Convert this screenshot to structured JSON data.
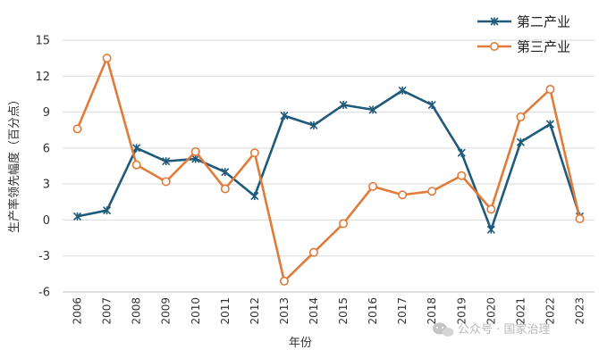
{
  "chart_data": {
    "type": "line",
    "title": "",
    "xlabel": "年份",
    "ylabel": "生产率领先幅度（百分点）",
    "categories": [
      "2006",
      "2007",
      "2008",
      "2009",
      "2010",
      "2011",
      "2012",
      "2013",
      "2014",
      "2015",
      "2016",
      "2017",
      "2018",
      "2019",
      "2020",
      "2021",
      "2022",
      "2023"
    ],
    "ylim": [
      -6,
      15
    ],
    "yticks": [
      -6,
      -3,
      0,
      3,
      6,
      9,
      12,
      15
    ],
    "grid": true,
    "legend_position": "top-right",
    "series": [
      {
        "name": "第二产业",
        "color": "#1f5a7a",
        "marker": "star",
        "values": [
          0.3,
          0.8,
          6.0,
          4.9,
          5.1,
          4.0,
          2.0,
          8.7,
          7.9,
          9.6,
          9.2,
          10.8,
          9.6,
          5.6,
          -0.8,
          6.5,
          8.0,
          0.3
        ]
      },
      {
        "name": "第三产业",
        "color": "#e07b3a",
        "marker": "circle",
        "values": [
          7.6,
          13.5,
          4.6,
          3.2,
          5.7,
          2.6,
          5.6,
          -5.1,
          -2.7,
          -0.3,
          2.8,
          2.1,
          2.4,
          3.7,
          0.9,
          8.6,
          10.9,
          0.1
        ]
      }
    ]
  },
  "watermark": {
    "icon": "wechat-icon",
    "text": "公众号 · 国家治理"
  }
}
